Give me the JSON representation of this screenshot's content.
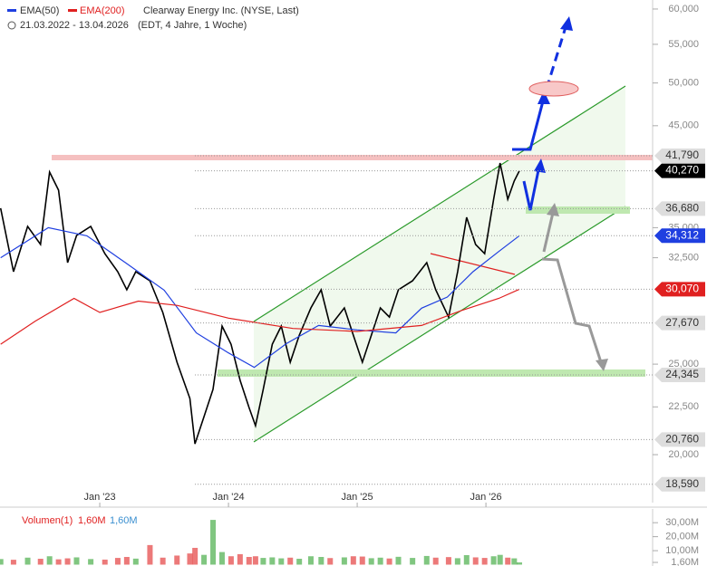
{
  "chart_data": [
    {
      "type": "line",
      "log": true,
      "title": "Clearway Energy Inc. (NYSE, Last)",
      "subtitle": "21.03.2022 - 13.04.2026",
      "note": "(EDT, 4 Jahre, 1 Woche)",
      "xlim": [
        2022.225,
        2027.295
      ],
      "xticks": [
        {
          "value": 2023,
          "label": "Jan '23"
        },
        {
          "value": 2024,
          "label": "Jan '24"
        },
        {
          "value": 2025,
          "label": "Jan '25"
        },
        {
          "value": 2026,
          "label": "Jan '26"
        }
      ],
      "ylim": [
        17770,
        61350
      ],
      "yticks": [
        {
          "value": 20000,
          "label": "20,000"
        },
        {
          "value": 22500,
          "label": "22,500"
        },
        {
          "value": 25000,
          "label": "25,000"
        },
        {
          "value": 32500,
          "label": "32,500"
        },
        {
          "value": 35000,
          "label": "35,000"
        },
        {
          "value": 45000,
          "label": "45,000"
        },
        {
          "value": 50000,
          "label": "50,000"
        },
        {
          "value": 55000,
          "label": "55,000"
        },
        {
          "value": 60000,
          "label": "60,000"
        }
      ],
      "x": [
        2022.23,
        2022.33,
        2022.44,
        2022.54,
        2022.61,
        2022.68,
        2022.75,
        2022.82,
        2022.93,
        2023.04,
        2023.14,
        2023.21,
        2023.28,
        2023.39,
        2023.49,
        2023.6,
        2023.7,
        2023.74,
        2023.81,
        2023.88,
        2023.95,
        2024.02,
        2024.09,
        2024.16,
        2024.21,
        2024.27,
        2024.34,
        2024.41,
        2024.48,
        2024.55,
        2024.64,
        2024.72,
        2024.79,
        2024.9,
        2024.97,
        2025.04,
        2025.11,
        2025.18,
        2025.25,
        2025.32,
        2025.43,
        2025.54,
        2025.61,
        2025.71,
        2025.78,
        2025.85,
        2025.92,
        2025.99,
        2026.06,
        2026.11,
        2026.17,
        2026.22,
        2026.26
      ],
      "series": [
        {
          "color": "#000000",
          "values": [
            36720,
            31400,
            35110,
            33580,
            40140,
            38390,
            32110,
            34330,
            35110,
            32830,
            31400,
            30030,
            31400,
            30700,
            28400,
            25120,
            22970,
            20540,
            21970,
            23490,
            27460,
            26260,
            24020,
            22460,
            21480,
            23490,
            26260,
            27460,
            25120,
            26850,
            28720,
            30030,
            27460,
            28720,
            26850,
            25120,
            26850,
            28720,
            28080,
            30030,
            30700,
            32110,
            30030,
            28080,
            31400,
            35900,
            33580,
            32830,
            37540,
            41050,
            37540,
            39260,
            40270
          ]
        },
        {
          "name": "EMA(50)",
          "color": "#1f3fe0",
          "x": [
            2022.23,
            2022.6,
            2022.9,
            2023.2,
            2023.5,
            2023.75,
            2024.0,
            2024.2,
            2024.45,
            2024.7,
            2025.0,
            2025.3,
            2025.5,
            2025.7,
            2025.9,
            2026.1,
            2026.26
          ],
          "values": [
            32500,
            35000,
            34300,
            32100,
            30000,
            27000,
            25700,
            24800,
            26300,
            27500,
            27200,
            27000,
            28700,
            29500,
            31400,
            33000,
            34312
          ]
        },
        {
          "name": "EMA(200)",
          "color": "#e02020",
          "x": [
            2022.23,
            2022.5,
            2022.8,
            2023.0,
            2023.3,
            2023.6,
            2024.0,
            2024.5,
            2025.0,
            2025.5,
            2025.8,
            2026.1,
            2026.26
          ],
          "values": [
            26260,
            27800,
            29400,
            28400,
            29200,
            28900,
            28000,
            27300,
            27100,
            27500,
            28500,
            29400,
            30070
          ]
        }
      ],
      "price_levels": [
        {
          "value": 41790,
          "label": "41,790",
          "color": "#dddddd"
        },
        {
          "value": 40270,
          "label": "40,270",
          "color": "#000000"
        },
        {
          "value": 36680,
          "label": "36,680",
          "color": "#dddddd"
        },
        {
          "value": 34312,
          "label": "34,312",
          "color": "#1f3fe0"
        },
        {
          "value": 30070,
          "label": "30,070",
          "color": "#e02020"
        },
        {
          "value": 27670,
          "label": "27,670",
          "color": "#dddddd"
        },
        {
          "value": 24345,
          "label": "24,345",
          "color": "#dddddd"
        },
        {
          "value": 20760,
          "label": "20,760",
          "color": "#dddddd"
        },
        {
          "value": 18590,
          "label": "18,590",
          "color": "#dddddd"
        }
      ]
    },
    {
      "type": "bar",
      "title": "Volumen(1)",
      "annotations": [
        {
          "label": "1,60M",
          "color": "#e02020"
        },
        {
          "label": "1,60M",
          "color": "#3a8fd0"
        }
      ],
      "ylim": [
        0,
        34000000
      ],
      "yticks": [
        {
          "value": 30000000,
          "label": "30,00M"
        },
        {
          "value": 20000000,
          "label": "20,00M"
        },
        {
          "value": 10000000,
          "label": "10,00M"
        },
        {
          "value": 1600000,
          "label": "1,60M"
        }
      ],
      "x": [
        2022.23,
        2022.33,
        2022.44,
        2022.54,
        2022.61,
        2022.68,
        2022.75,
        2022.82,
        2022.93,
        2023.04,
        2023.14,
        2023.21,
        2023.28,
        2023.39,
        2023.49,
        2023.6,
        2023.7,
        2023.74,
        2023.81,
        2023.88,
        2023.95,
        2024.02,
        2024.09,
        2024.16,
        2024.21,
        2024.27,
        2024.34,
        2024.41,
        2024.48,
        2024.55,
        2024.64,
        2024.72,
        2024.79,
        2024.9,
        2024.97,
        2025.04,
        2025.11,
        2025.18,
        2025.25,
        2025.32,
        2025.43,
        2025.54,
        2025.61,
        2025.71,
        2025.78,
        2025.85,
        2025.92,
        2025.99,
        2026.06,
        2026.11,
        2026.17,
        2026.22,
        2026.26
      ],
      "values": [
        4000000,
        3500000,
        5000000,
        4200000,
        6000000,
        3800000,
        4500000,
        5200000,
        4000000,
        3600000,
        4800000,
        5500000,
        4300000,
        14000000,
        5000000,
        6500000,
        8000000,
        12000000,
        7000000,
        32000000,
        9000000,
        6000000,
        7500000,
        5500000,
        6000000,
        4800000,
        5200000,
        4500000,
        5000000,
        4200000,
        6000000,
        5500000,
        4700000,
        5200000,
        6000000,
        5800000,
        4600000,
        5000000,
        4400000,
        5600000,
        4800000,
        6200000,
        5000000,
        5400000,
        4600000,
        6800000,
        5200000,
        4800000,
        6000000,
        7000000,
        5000000,
        4500000,
        1600000
      ],
      "color_up": "#2ca02c",
      "color_down": "#e02020"
    }
  ]
}
